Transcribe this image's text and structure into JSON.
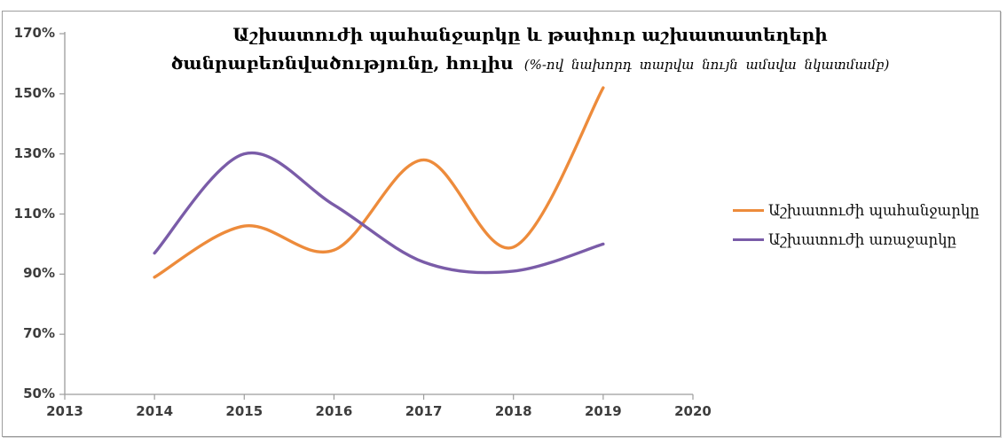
{
  "frame": {
    "border_color": "#9e9e9e",
    "background": "#ffffff"
  },
  "title": {
    "line1": "Աշխատուժի պահանջարկը և թափուր աշխատատեղերի",
    "line2_bold": "ծանրաբեռնվածությունը, հուլիս",
    "line2_italic": "(%-ով նախորդ տարվա նույն ամսվա նկատմամբ)"
  },
  "chart_data": {
    "type": "line",
    "smooth": true,
    "title": "Աշխատուժի պահանջարկը և թափուր աշխատատեղերի ծանրաբեռնվածությունը, հուլիս (%-ով նախորդ տարվա նույն ամսվա նկատմամբ)",
    "x": [
      2014,
      2015,
      2016,
      2017,
      2018,
      2019
    ],
    "series": [
      {
        "name": "Աշխատուժի պահանջարկը",
        "color": "#ED8B3B",
        "values": [
          89,
          106,
          98,
          128,
          99,
          152
        ]
      },
      {
        "name": "Աշխատուժի առաջարկը",
        "color": "#7A5CA8",
        "values": [
          97,
          130,
          113,
          94,
          91,
          100
        ]
      }
    ],
    "xlabel": "",
    "ylabel": "",
    "xlim": [
      2013,
      2020
    ],
    "ylim": [
      50,
      170
    ],
    "x_ticks": [
      2013,
      2014,
      2015,
      2016,
      2017,
      2018,
      2019,
      2020
    ],
    "y_ticks": [
      50,
      70,
      90,
      110,
      130,
      150,
      170
    ],
    "y_tick_suffix": "%",
    "grid": false,
    "legend_position": "right",
    "axis_color": "#9c9c9c",
    "tick_label_color": "#3d3d3d"
  }
}
